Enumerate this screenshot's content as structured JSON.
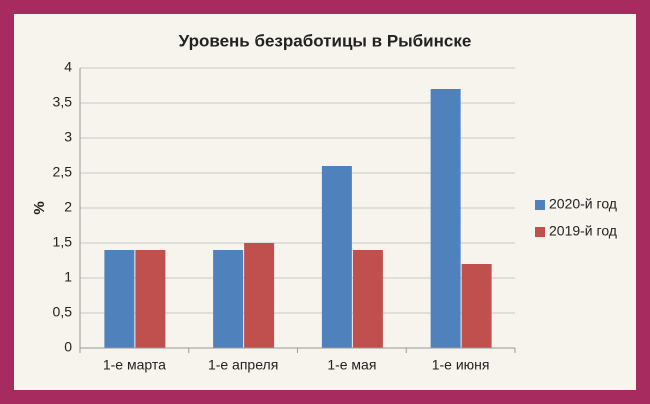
{
  "chart_data": {
    "type": "bar",
    "title": "Уровень безработицы  в Рыбинске",
    "y_label": "%",
    "categories": [
      "1-е марта",
      "1-е апреля",
      "1-е мая",
      "1-е июня"
    ],
    "series": [
      {
        "name": "2020-й год",
        "color": "#4f81bd",
        "values": [
          1.4,
          1.4,
          2.6,
          3.7
        ]
      },
      {
        "name": "2019-й год",
        "color": "#c0504d",
        "values": [
          1.4,
          1.5,
          1.4,
          1.2
        ]
      }
    ],
    "ylim": [
      0,
      4
    ],
    "yticks": [
      0,
      {
        "value": 0.5,
        "label": "0,5"
      },
      1,
      {
        "value": 1.5,
        "label": "1,5"
      },
      2,
      {
        "value": 2.5,
        "label": "2,5"
      },
      3,
      {
        "value": 3.5,
        "label": "3,5"
      },
      4
    ],
    "grid": true,
    "legend": "right"
  }
}
